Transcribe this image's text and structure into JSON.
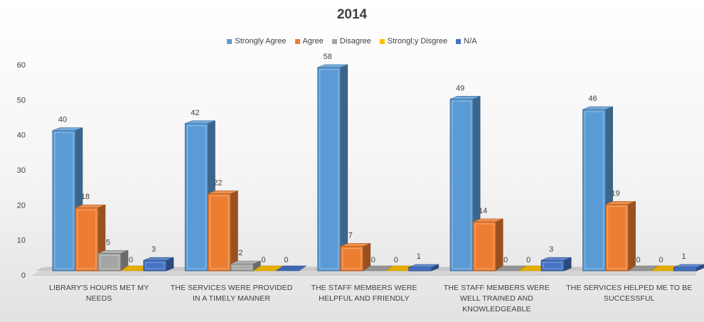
{
  "chart_data": {
    "type": "bar",
    "title": "2014",
    "categories": [
      "LIBRARY'S HOURS MET MY NEEDS",
      "THE SERVICES WERE PROVIDED IN A TIMELY MANNER",
      "THE STAFF MEMBERS WERE HELPFUL AND FRIENDLY",
      "THE STAFF MEMBERS WERE WELL TRAINED AND KNOWLEDGEABLE",
      "THE SERVICES HELPED ME TO BE SUCCESSFUL"
    ],
    "category_lines": [
      [
        "LIBRARY'S HOURS MET MY",
        "NEEDS"
      ],
      [
        "THE SERVICES WERE PROVIDED",
        "IN A TIMELY MANNER"
      ],
      [
        "THE STAFF MEMBERS WERE",
        "HELPFUL AND FRIENDLY"
      ],
      [
        "THE STAFF MEMBERS WERE",
        "WELL TRAINED AND",
        "KNOWLEDGEABLE"
      ],
      [
        "THE SERVICES HELPED ME TO BE",
        "SUCCESSFUL"
      ]
    ],
    "series": [
      {
        "name": "Strongly Agree",
        "color": "#5b9bd5",
        "values": [
          40,
          42,
          58,
          49,
          46
        ]
      },
      {
        "name": "Agree",
        "color": "#ed7d31",
        "values": [
          18,
          22,
          7,
          14,
          19
        ]
      },
      {
        "name": "Disagree",
        "color": "#a5a5a5",
        "values": [
          5,
          2,
          0,
          0,
          0
        ]
      },
      {
        "name": "Strongl;y Disgree",
        "color": "#ffc000",
        "values": [
          0,
          0,
          0,
          0,
          0
        ]
      },
      {
        "name": "N/A",
        "color": "#4472c4",
        "values": [
          3,
          0,
          1,
          3,
          1
        ]
      }
    ],
    "ylim": [
      0,
      60
    ],
    "yticks": [
      0,
      10,
      20,
      30,
      40,
      50,
      60
    ],
    "xlabel": "",
    "ylabel": "",
    "legend": "top-center",
    "grid": false
  }
}
